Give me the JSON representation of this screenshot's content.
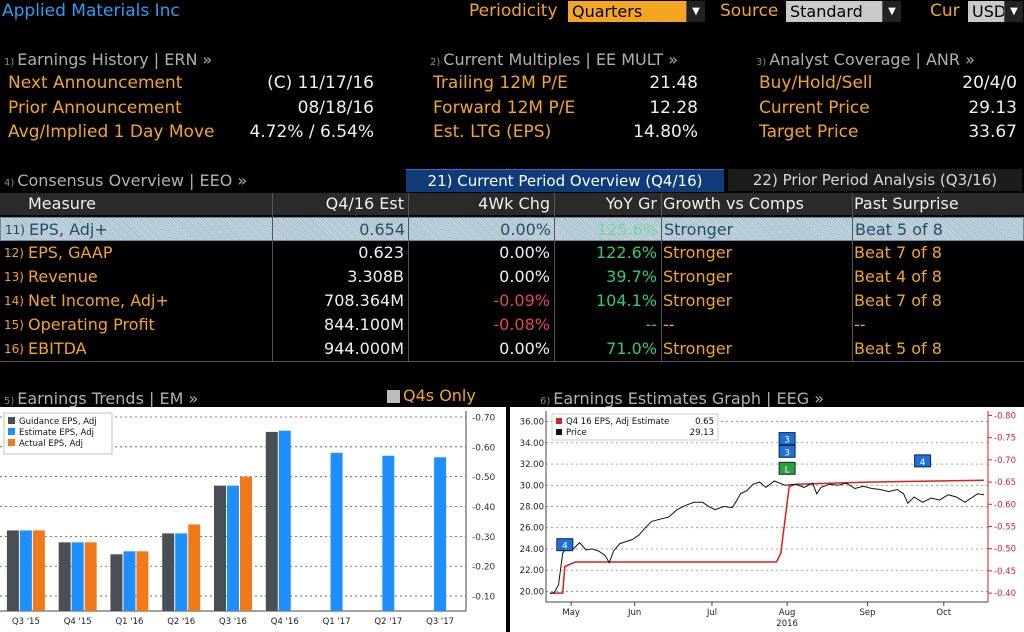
{
  "header": {
    "company": "Applied Materials Inc",
    "periodicity_label": "Periodicity",
    "periodicity_value": "Quarters",
    "source_label": "Source",
    "source_value": "Standard",
    "currency_label": "Cur",
    "currency_value": "USD"
  },
  "earnings_history": {
    "num": "1)",
    "title": "Earnings History | ERN »",
    "rows": [
      {
        "label": "Next Announcement",
        "value": "(C)  11/17/16"
      },
      {
        "label": "Prior Announcement",
        "value": "08/18/16"
      },
      {
        "label": "Avg/Implied 1 Day Move",
        "value": "4.72% / 6.54%"
      }
    ]
  },
  "current_multiples": {
    "num": "2)",
    "title": "Current Multiples | EE MULT »",
    "rows": [
      {
        "label": "Trailing 12M P/E",
        "value": "21.48"
      },
      {
        "label": "Forward 12M P/E",
        "value": "12.28"
      },
      {
        "label": "Est. LTG (EPS)",
        "value": "14.80%"
      }
    ]
  },
  "analyst_coverage": {
    "num": "3)",
    "title": "Analyst Coverage | ANR »",
    "rows": [
      {
        "label": "Buy/Hold/Sell",
        "value": "20/4/0"
      },
      {
        "label": "Current Price",
        "value": "29.13"
      },
      {
        "label": "Target Price",
        "value": "33.67"
      }
    ]
  },
  "consensus": {
    "num": "4)",
    "title": "Consensus Overview | EEO »",
    "tab_current": "21) Current Period Overview (Q4/16)",
    "tab_prior": "22) Prior Period Analysis (Q3/16)",
    "columns": [
      "Measure",
      "Q4/16 Est",
      "4Wk Chg",
      "YoY Gr",
      "Growth vs Comps",
      "Past Surprise"
    ],
    "rows": [
      {
        "idx": "11)",
        "measure": "EPS, Adj+",
        "est": "0.654",
        "chg": "0.00%",
        "chg_color": "white",
        "yoy": "125.6%",
        "growth": "Stronger",
        "surprise": "Beat 5 of 8"
      },
      {
        "idx": "12)",
        "measure": "EPS, GAAP",
        "est": "0.623",
        "chg": "0.00%",
        "chg_color": "white",
        "yoy": "122.6%",
        "growth": "Stronger",
        "surprise": "Beat 7 of 8"
      },
      {
        "idx": "13)",
        "measure": "Revenue",
        "est": "3.308B",
        "chg": "0.00%",
        "chg_color": "white",
        "yoy": "39.7%",
        "growth": "Stronger",
        "surprise": "Beat 4 of 8"
      },
      {
        "idx": "14)",
        "measure": "Net Income, Adj+",
        "est": "708.364M",
        "chg": "-0.09%",
        "chg_color": "red",
        "yoy": "104.1%",
        "growth": "Stronger",
        "surprise": "Beat 7 of 8"
      },
      {
        "idx": "15)",
        "measure": "Operating Profit",
        "est": "844.100M",
        "chg": "-0.08%",
        "chg_color": "red",
        "yoy": "--",
        "growth": "--",
        "surprise": "--"
      },
      {
        "idx": "16)",
        "measure": "EBITDA",
        "est": "944.000M",
        "chg": "0.00%",
        "chg_color": "white",
        "yoy": "71.0%",
        "growth": "Stronger",
        "surprise": "Beat 5 of 8"
      }
    ]
  },
  "earnings_trends": {
    "num": "5)",
    "title": "Earnings Trends | EM »",
    "toggle_label": "Q4s Only"
  },
  "earnings_graph": {
    "num": "6)",
    "title": "Earnings Estimates Graph | EEG »"
  },
  "colors": {
    "guidance": "#4a4f56",
    "estimate": "#1e8fff",
    "actual": "#f07a1a",
    "price": "#111111",
    "estimate_line": "#dd1f1f"
  },
  "chart_data": [
    {
      "type": "bar",
      "categories": [
        "Q3 '15",
        "Q4 '15",
        "Q1 '16",
        "Q2 '16",
        "Q3 '16",
        "Q4 '16",
        "Q1 '17",
        "Q2 '17",
        "Q3 '17"
      ],
      "series": [
        {
          "name": "Guidance EPS, Adj",
          "values": [
            0.32,
            0.28,
            0.24,
            0.31,
            0.47,
            0.65,
            null,
            null,
            null
          ]
        },
        {
          "name": "Estimate EPS, Adj",
          "values": [
            0.32,
            0.28,
            0.25,
            0.31,
            0.47,
            0.654,
            0.58,
            0.57,
            0.565
          ]
        },
        {
          "name": "Actual EPS, Adj",
          "values": [
            0.32,
            0.28,
            0.25,
            0.34,
            0.5,
            null,
            null,
            null,
            null
          ]
        }
      ],
      "ylim": [
        0.05,
        0.72
      ],
      "yticks": [
        "0.10",
        "0.20",
        "0.30",
        "0.40",
        "0.50",
        "0.60",
        "0.70"
      ],
      "legend": "top-left",
      "grid": true
    },
    {
      "type": "line",
      "legend_entries": [
        {
          "name": "Q4 16 EPS, Adj Estimate",
          "value": "0.65"
        },
        {
          "name": "Price",
          "value": "29.13"
        }
      ],
      "x_ticks": [
        "May",
        "Jun",
        "Jul",
        "Aug",
        "Sep",
        "Oct"
      ],
      "x_year": "2016",
      "y_left_ticks": [
        "20.00",
        "22.00",
        "24.00",
        "26.00",
        "28.00",
        "30.00",
        "32.00",
        "34.00",
        "36.00"
      ],
      "y_right_ticks": [
        "0.40",
        "0.45",
        "0.50",
        "0.55",
        "0.60",
        "0.65",
        "0.70",
        "0.75",
        "0.80"
      ],
      "y_left_range": [
        19,
        37
      ],
      "y_right_range": [
        0.38,
        0.81
      ],
      "price": [
        [
          0,
          19.8
        ],
        [
          4,
          19.9
        ],
        [
          8,
          20.6
        ],
        [
          12,
          23.6
        ],
        [
          16,
          24.2
        ],
        [
          22,
          24.0
        ],
        [
          28,
          24.6
        ],
        [
          34,
          23.9
        ],
        [
          40,
          24.0
        ],
        [
          46,
          23.8
        ],
        [
          52,
          23.4
        ],
        [
          56,
          22.7
        ],
        [
          60,
          23.8
        ],
        [
          66,
          24.5
        ],
        [
          72,
          24.7
        ],
        [
          78,
          24.9
        ],
        [
          84,
          25.3
        ],
        [
          90,
          26.0
        ],
        [
          96,
          26.6
        ],
        [
          104,
          26.8
        ],
        [
          112,
          27.0
        ],
        [
          120,
          27.7
        ],
        [
          128,
          28.1
        ],
        [
          136,
          28.4
        ],
        [
          144,
          28.4
        ],
        [
          150,
          28.0
        ],
        [
          156,
          27.7
        ],
        [
          164,
          28.0
        ],
        [
          172,
          27.9
        ],
        [
          176,
          28.5
        ],
        [
          180,
          29.2
        ],
        [
          186,
          29.5
        ],
        [
          192,
          30.1
        ],
        [
          198,
          30.3
        ],
        [
          204,
          29.8
        ],
        [
          212,
          30.4
        ],
        [
          222,
          30.0
        ],
        [
          232,
          30.1
        ],
        [
          240,
          29.8
        ],
        [
          248,
          30.2
        ],
        [
          252,
          29.2
        ],
        [
          256,
          29.8
        ],
        [
          264,
          30.1
        ],
        [
          272,
          30.0
        ],
        [
          280,
          30.2
        ],
        [
          288,
          29.7
        ],
        [
          296,
          29.9
        ],
        [
          304,
          29.7
        ],
        [
          312,
          29.6
        ],
        [
          320,
          29.4
        ],
        [
          328,
          29.6
        ],
        [
          334,
          29.2
        ],
        [
          338,
          28.3
        ],
        [
          344,
          28.9
        ],
        [
          352,
          28.4
        ],
        [
          360,
          28.8
        ],
        [
          368,
          28.6
        ],
        [
          376,
          29.1
        ],
        [
          384,
          28.9
        ],
        [
          392,
          28.4
        ],
        [
          398,
          28.8
        ],
        [
          404,
          29.2
        ],
        [
          410,
          29.1
        ]
      ],
      "estimate": [
        [
          0,
          0.4
        ],
        [
          12,
          0.4
        ],
        [
          14,
          0.46
        ],
        [
          24,
          0.47
        ],
        [
          54,
          0.47
        ],
        [
          80,
          0.47
        ],
        [
          180,
          0.47
        ],
        [
          214,
          0.47
        ],
        [
          218,
          0.49
        ],
        [
          226,
          0.64
        ],
        [
          232,
          0.645
        ],
        [
          300,
          0.65
        ],
        [
          410,
          0.654
        ]
      ],
      "markers": [
        {
          "label": "4",
          "x": 14,
          "y_price": 24.4,
          "color": "#1e6fd9"
        },
        {
          "label": "3",
          "x": 224,
          "y_price": 34.4,
          "color": "#1e6fd9"
        },
        {
          "label": "3",
          "x": 224,
          "y_price": 33.2,
          "color": "#1e6fd9"
        },
        {
          "label": "L",
          "x": 224,
          "y_price": 31.6,
          "color": "#27a33a"
        },
        {
          "label": "4",
          "x": 352,
          "y_price": 32.3,
          "color": "#1e6fd9"
        }
      ]
    }
  ]
}
